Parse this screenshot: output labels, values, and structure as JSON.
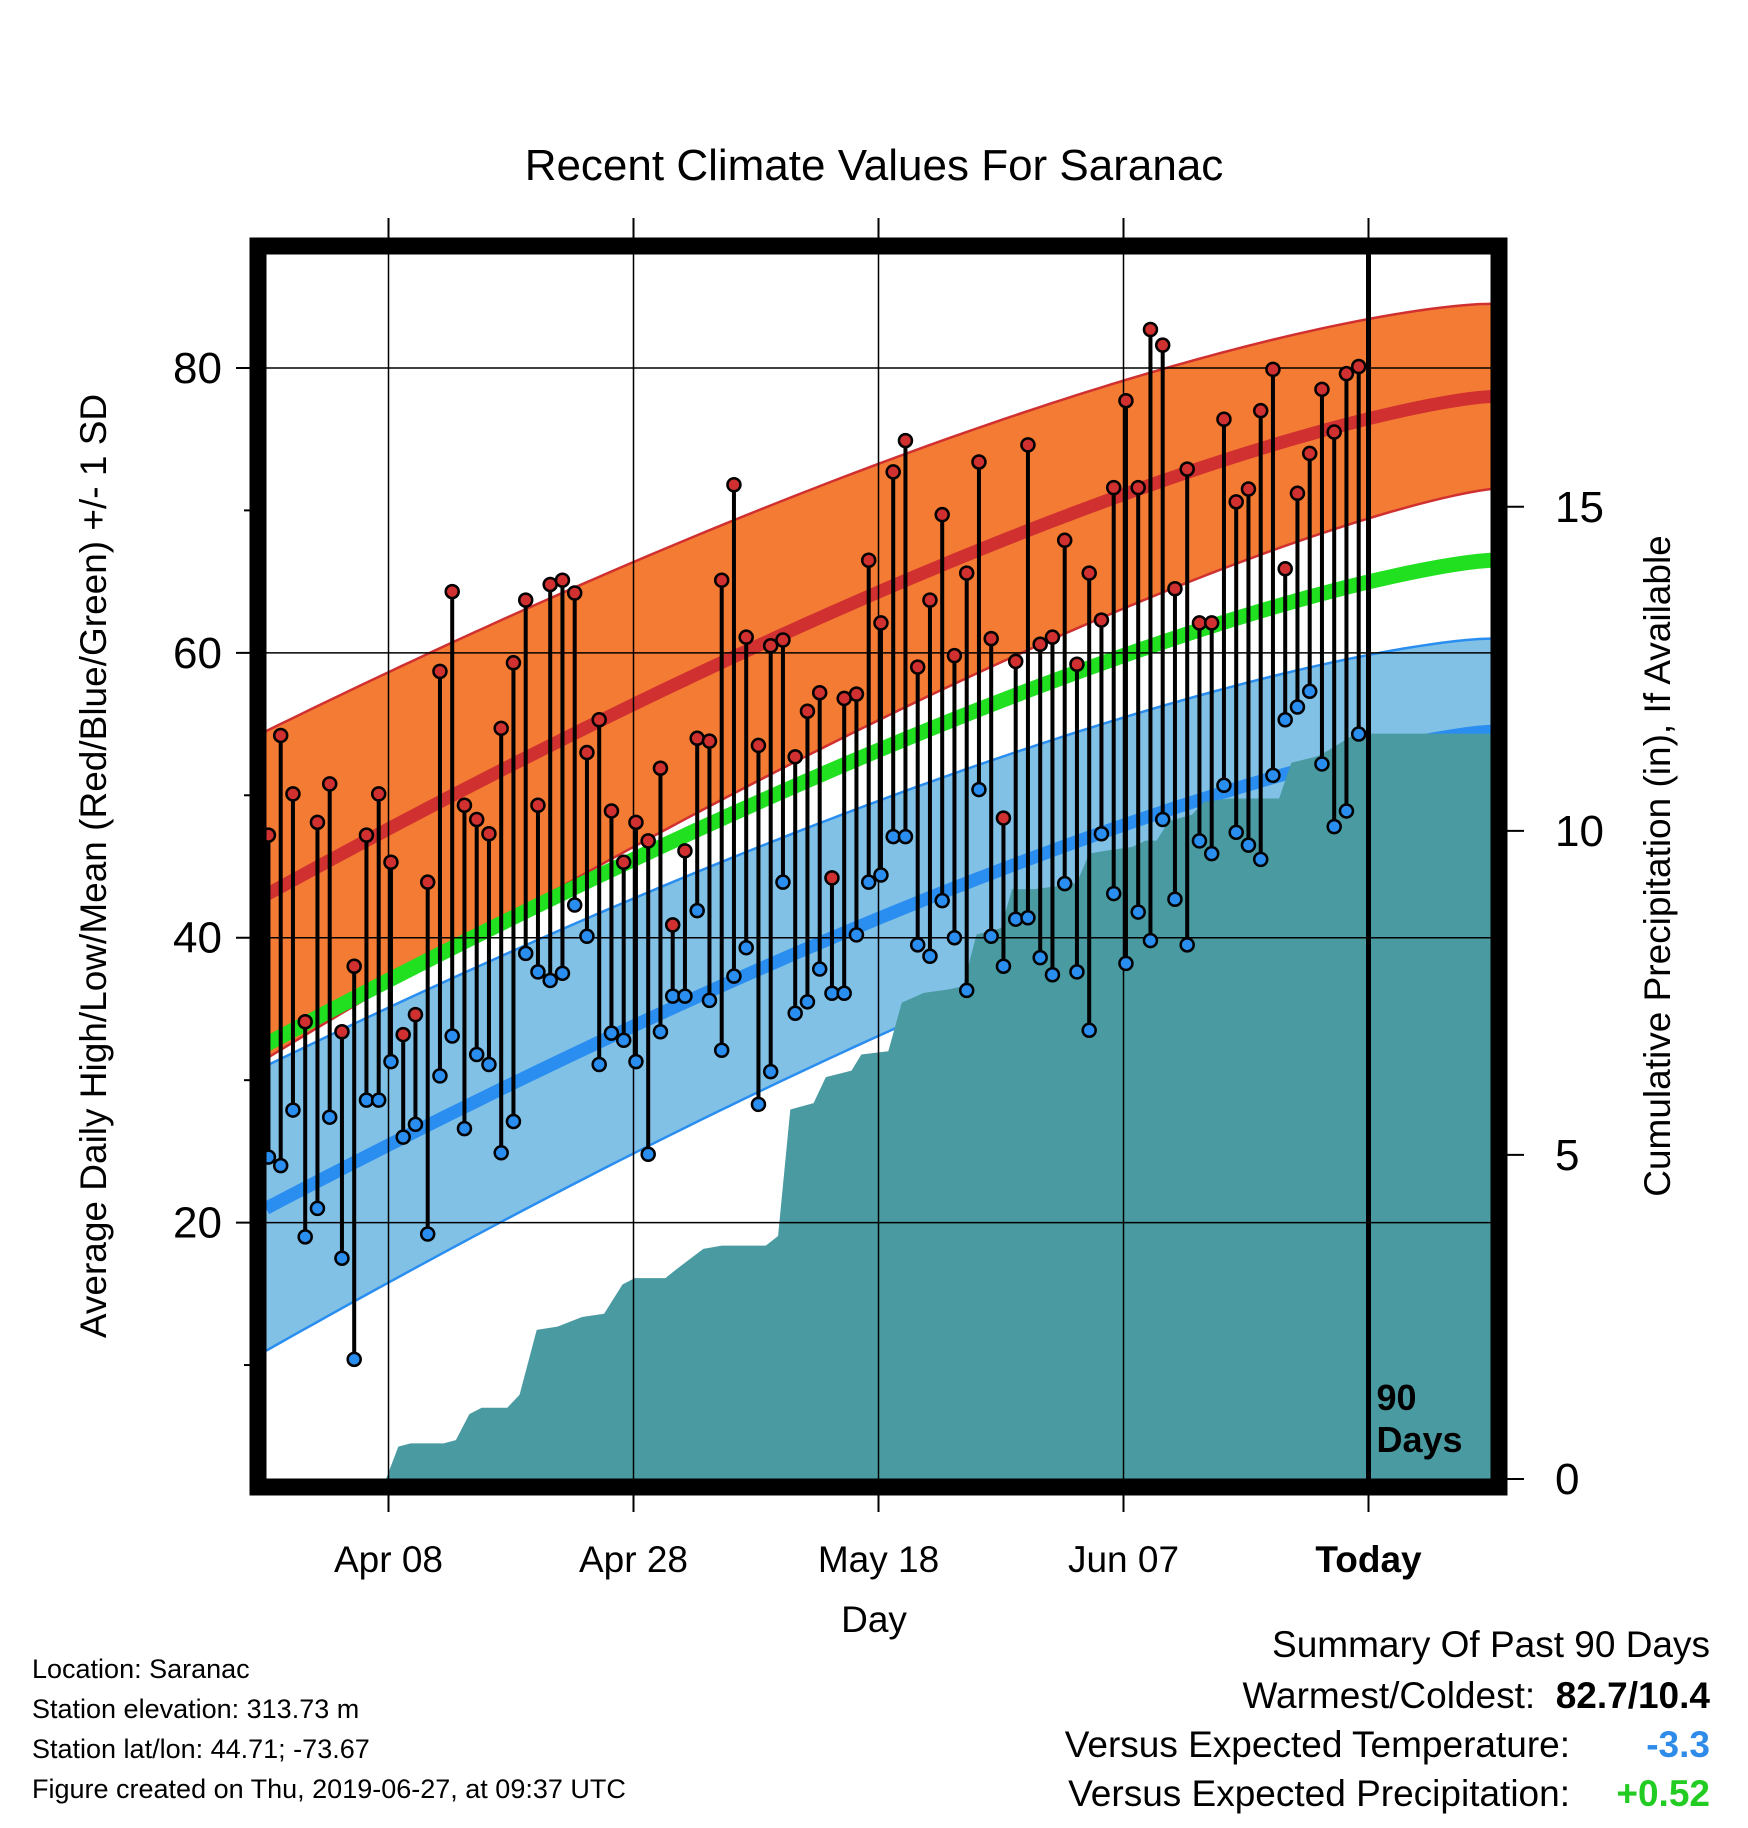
{
  "chart_data": {
    "type": "line",
    "title": "Recent Climate Values For Saranac",
    "xlabel": "Day",
    "ylabel_left": "Average Daily High/Low/Mean (Red/Blue/Green) +/- 1 SD",
    "ylabel_right": "Cumulative Precipitation (in), If Available",
    "x_tick_labels": [
      "Apr 08",
      "Apr 28",
      "May 18",
      "Jun 07",
      "Today"
    ],
    "x_tick_days": [
      10,
      30,
      50,
      70,
      90
    ],
    "xlim": [
      0,
      100
    ],
    "ylim_left": [
      2,
      88
    ],
    "y_left_ticks": [
      20,
      40,
      60,
      80
    ],
    "ylim_right": [
      0,
      18.9
    ],
    "y_right_ticks": [
      0,
      5,
      10,
      15
    ],
    "grid": true,
    "today_marker": {
      "day": 90,
      "label_line1": "90",
      "label_line2": "Days"
    },
    "normals": {
      "high_mean": {
        "day": [
          0,
          100
        ],
        "start": 43,
        "end": 78
      },
      "high_band_halfwidth": [
        11.5,
        6.5
      ],
      "low_mean": {
        "day": [
          0,
          100
        ],
        "start": 21,
        "end": 54.5
      },
      "low_band_halfwidth": [
        10,
        6.5
      ],
      "mean": {
        "day": [
          0,
          100
        ],
        "start": 32.5,
        "end": 66.5
      }
    },
    "daily_high": [
      47.2,
      54.2,
      50.1,
      34.1,
      48.1,
      50.8,
      33.4,
      38.0,
      47.2,
      50.1,
      45.3,
      33.2,
      34.6,
      43.9,
      58.7,
      64.3,
      49.3,
      48.3,
      47.3,
      54.7,
      59.3,
      63.7,
      49.3,
      64.8,
      65.1,
      64.2,
      53.0,
      55.3,
      48.9,
      45.3,
      48.1,
      46.8,
      51.9,
      40.9,
      46.1,
      54.0,
      53.8,
      65.1,
      71.8,
      61.1,
      53.5,
      60.5,
      60.9,
      52.7,
      55.9,
      57.2,
      44.2,
      56.8,
      57.1,
      66.5,
      62.1,
      72.7,
      74.9,
      59.0,
      63.7,
      69.7,
      59.8,
      65.6,
      73.4,
      61.0,
      48.4,
      59.4,
      74.6,
      60.6,
      61.1,
      67.9,
      59.2,
      65.6,
      62.3,
      71.6,
      77.7,
      71.6,
      82.7,
      81.6,
      64.5,
      72.9,
      62.1,
      62.1,
      76.4,
      70.6,
      71.5,
      77.0,
      79.9,
      65.9,
      71.2,
      74.0,
      78.5,
      75.5,
      79.6,
      80.1
    ],
    "daily_low": [
      24.6,
      24.0,
      27.9,
      19.0,
      21.0,
      27.4,
      17.5,
      10.4,
      28.6,
      28.6,
      31.3,
      26.0,
      26.9,
      19.2,
      30.3,
      33.1,
      26.6,
      31.8,
      31.1,
      24.9,
      27.1,
      38.9,
      37.6,
      37.0,
      37.5,
      42.3,
      40.1,
      31.1,
      33.3,
      32.8,
      31.3,
      24.8,
      33.4,
      35.9,
      35.9,
      41.9,
      35.6,
      32.1,
      37.3,
      39.3,
      28.3,
      30.6,
      43.9,
      34.7,
      35.5,
      37.8,
      36.1,
      36.1,
      40.2,
      43.9,
      44.4,
      47.1,
      47.1,
      39.5,
      38.7,
      42.6,
      40.0,
      36.3,
      50.4,
      40.1,
      38.0,
      41.3,
      41.4,
      38.6,
      37.4,
      43.8,
      37.6,
      33.5,
      47.3,
      43.1,
      38.2,
      41.8,
      39.8,
      48.3,
      42.7,
      39.5,
      46.8,
      45.9,
      50.7,
      47.4,
      46.5,
      45.5,
      51.4,
      55.3,
      56.2,
      57.3,
      52.2,
      47.8,
      48.9,
      54.3
    ],
    "cumulative_precip": [
      [
        0,
        0
      ],
      [
        9.8,
        0
      ],
      [
        10.8,
        0.5
      ],
      [
        11.8,
        0.55
      ],
      [
        14.5,
        0.55
      ],
      [
        15.5,
        0.6
      ],
      [
        16.6,
        1.0
      ],
      [
        17.6,
        1.1
      ],
      [
        19.7,
        1.1
      ],
      [
        20.7,
        1.3
      ],
      [
        22.1,
        2.3
      ],
      [
        23.8,
        2.35
      ],
      [
        25.8,
        2.5
      ],
      [
        27.6,
        2.55
      ],
      [
        29.1,
        3.0
      ],
      [
        30.1,
        3.1
      ],
      [
        32.6,
        3.1
      ],
      [
        33.6,
        3.25
      ],
      [
        35.7,
        3.55
      ],
      [
        37.2,
        3.6
      ],
      [
        38.9,
        3.6
      ],
      [
        40.8,
        3.6
      ],
      [
        41.8,
        3.75
      ],
      [
        42.8,
        5.7
      ],
      [
        44.7,
        5.8
      ],
      [
        45.7,
        6.2
      ],
      [
        47.8,
        6.3
      ],
      [
        48.6,
        6.55
      ],
      [
        50.8,
        6.6
      ],
      [
        51.9,
        7.35
      ],
      [
        53.7,
        7.5
      ],
      [
        55.6,
        7.55
      ],
      [
        56.9,
        7.6
      ],
      [
        58.0,
        8.4
      ],
      [
        60.0,
        8.5
      ],
      [
        60.9,
        9.1
      ],
      [
        62.7,
        9.1
      ],
      [
        64.8,
        9.15
      ],
      [
        66.2,
        9.2
      ],
      [
        67.2,
        9.65
      ],
      [
        68.8,
        9.7
      ],
      [
        70.7,
        9.75
      ],
      [
        71.8,
        9.85
      ],
      [
        72.7,
        9.85
      ],
      [
        73.7,
        10.15
      ],
      [
        75.6,
        10.25
      ],
      [
        76.6,
        10.45
      ],
      [
        78.7,
        10.5
      ],
      [
        80.7,
        10.5
      ],
      [
        82.7,
        10.5
      ],
      [
        83.7,
        11.05
      ],
      [
        85.8,
        11.15
      ],
      [
        86.8,
        11.25
      ],
      [
        88.5,
        11.45
      ],
      [
        90.2,
        11.5
      ],
      [
        100,
        11.5
      ]
    ]
  },
  "meta": {
    "location": "Location: Saranac",
    "elevation": "Station elevation: 313.73 m",
    "latlon": "Station lat/lon: 44.71; -73.67",
    "created": "Figure created on Thu, 2019-06-27, at 09:37 UTC"
  },
  "summary": {
    "heading": "Summary Of Past 90 Days",
    "warmest_label": "Warmest/Coldest:",
    "warmest_value": "82.7/10.4",
    "temp_label": "Versus Expected Temperature:",
    "temp_value": "-3.3",
    "temp_color": "#2e8be8",
    "precip_label": "Versus Expected Precipitation:",
    "precip_value": "+0.52",
    "precip_color": "#22cc22"
  },
  "colors": {
    "high_band": "#f47b33",
    "high_line": "#d03030",
    "low_band": "#82c1e6",
    "low_line": "#2a8ef0",
    "mean_line": "#20e020",
    "precip_fill": "#4a9aa2",
    "high_dot": "#d03030",
    "low_dot": "#2a8ef0"
  }
}
